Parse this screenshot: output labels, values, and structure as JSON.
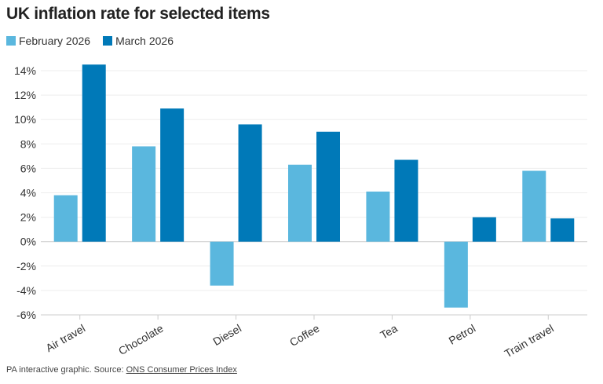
{
  "chart_data": {
    "type": "bar",
    "title": "UK inflation rate for selected items",
    "categories": [
      "Air travel",
      "Chocolate",
      "Diesel",
      "Coffee",
      "Tea",
      "Petrol",
      "Train travel"
    ],
    "series": [
      {
        "name": "February 2026",
        "color": "#5ab7de",
        "values": [
          3.8,
          7.8,
          -3.6,
          6.3,
          4.1,
          -5.4,
          5.8
        ]
      },
      {
        "name": "March 2026",
        "color": "#0079b8",
        "values": [
          14.5,
          10.9,
          9.6,
          9.0,
          6.7,
          2.0,
          1.9
        ]
      }
    ],
    "ylim": [
      -6,
      14
    ],
    "yticks": [
      -6,
      -4,
      -2,
      0,
      2,
      4,
      6,
      8,
      10,
      12,
      14
    ],
    "ytick_format": "%",
    "grid": true,
    "legend": "top-left",
    "xlabel": "",
    "ylabel": ""
  },
  "footer": {
    "text": "PA interactive graphic. Source: ",
    "link": "ONS Consumer Prices Index"
  }
}
